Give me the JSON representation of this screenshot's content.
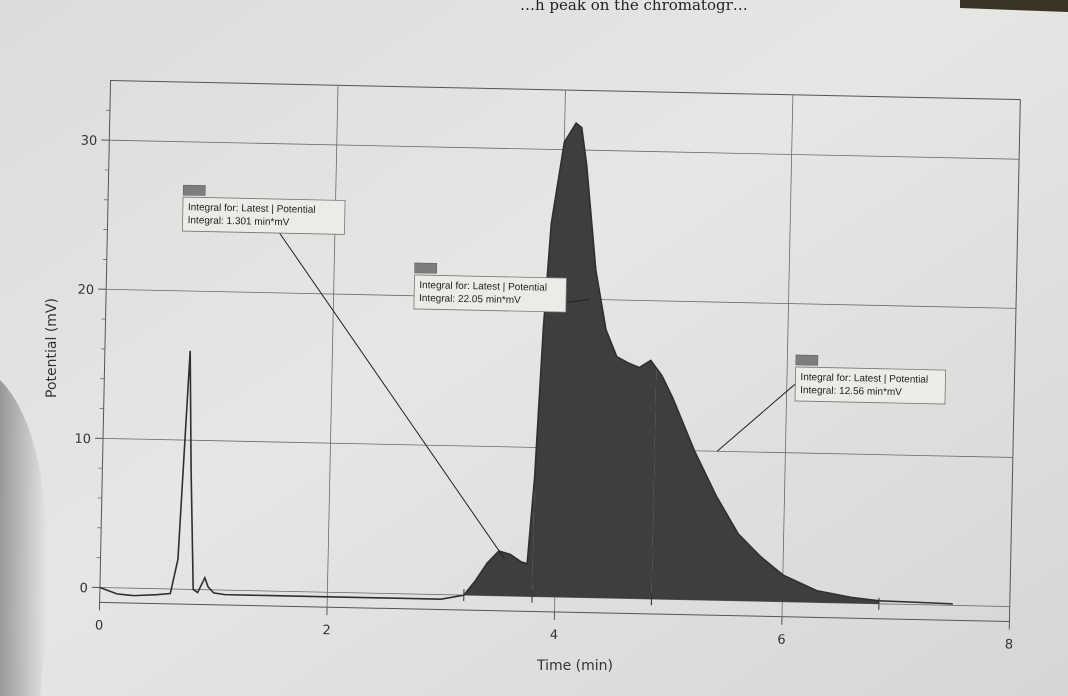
{
  "page_fragment_text": "…h peak on the chromatogr…",
  "chart_data": {
    "type": "line",
    "title": "",
    "xlabel": "Time (min)",
    "ylabel": "Potential (mV)",
    "xlim": [
      0,
      8
    ],
    "ylim": [
      -1,
      34
    ],
    "x_ticks": [
      0,
      2,
      4,
      6,
      8
    ],
    "y_ticks": [
      0,
      10,
      20,
      30
    ],
    "grid": true,
    "series": [
      {
        "x": [
          0,
          0.15,
          0.3,
          0.5,
          0.62,
          0.68,
          0.72,
          0.75,
          0.78,
          0.82,
          0.86,
          0.92,
          0.95,
          1.0,
          1.1,
          1.5,
          2.0,
          2.5,
          3.0,
          3.2,
          3.3,
          3.4,
          3.5,
          3.6,
          3.7,
          3.75,
          3.8,
          3.85,
          3.9,
          4.0,
          4.1,
          4.15,
          4.2,
          4.3,
          4.4,
          4.5,
          4.6,
          4.7,
          4.8,
          4.9,
          5.0,
          5.2,
          5.4,
          5.6,
          5.8,
          6.0,
          6.3,
          6.6,
          6.85,
          7.2,
          7.5
        ],
        "y": [
          0,
          -0.4,
          -0.5,
          -0.4,
          -0.3,
          2,
          10,
          16,
          8,
          0,
          -0.2,
          0.8,
          0.2,
          -0.2,
          -0.3,
          -0.3,
          -0.3,
          -0.3,
          -0.3,
          0,
          1,
          2.2,
          3,
          2.8,
          2.3,
          2.2,
          8,
          18,
          25,
          30.5,
          31.8,
          31.5,
          29,
          22,
          18,
          16.2,
          15.8,
          15.5,
          16,
          15,
          13.5,
          10,
          7,
          4.5,
          3,
          1.8,
          0.8,
          0.4,
          0.2,
          0.15,
          0.1
        ]
      }
    ],
    "annotations": [
      {
        "line1": "Integral for: Latest | Potential",
        "line2": "Integral: 1.301 min*mV",
        "region": [
          3.2,
          3.8
        ]
      },
      {
        "line1": "Integral for: Latest | Potential",
        "line2": "Integral: 22.05 min*mV",
        "region": [
          3.8,
          4.85
        ]
      },
      {
        "line1": "Integral for: Latest | Potential",
        "line2": "Integral: 12.56 min*mV",
        "region": [
          4.85,
          6.85
        ]
      }
    ]
  }
}
